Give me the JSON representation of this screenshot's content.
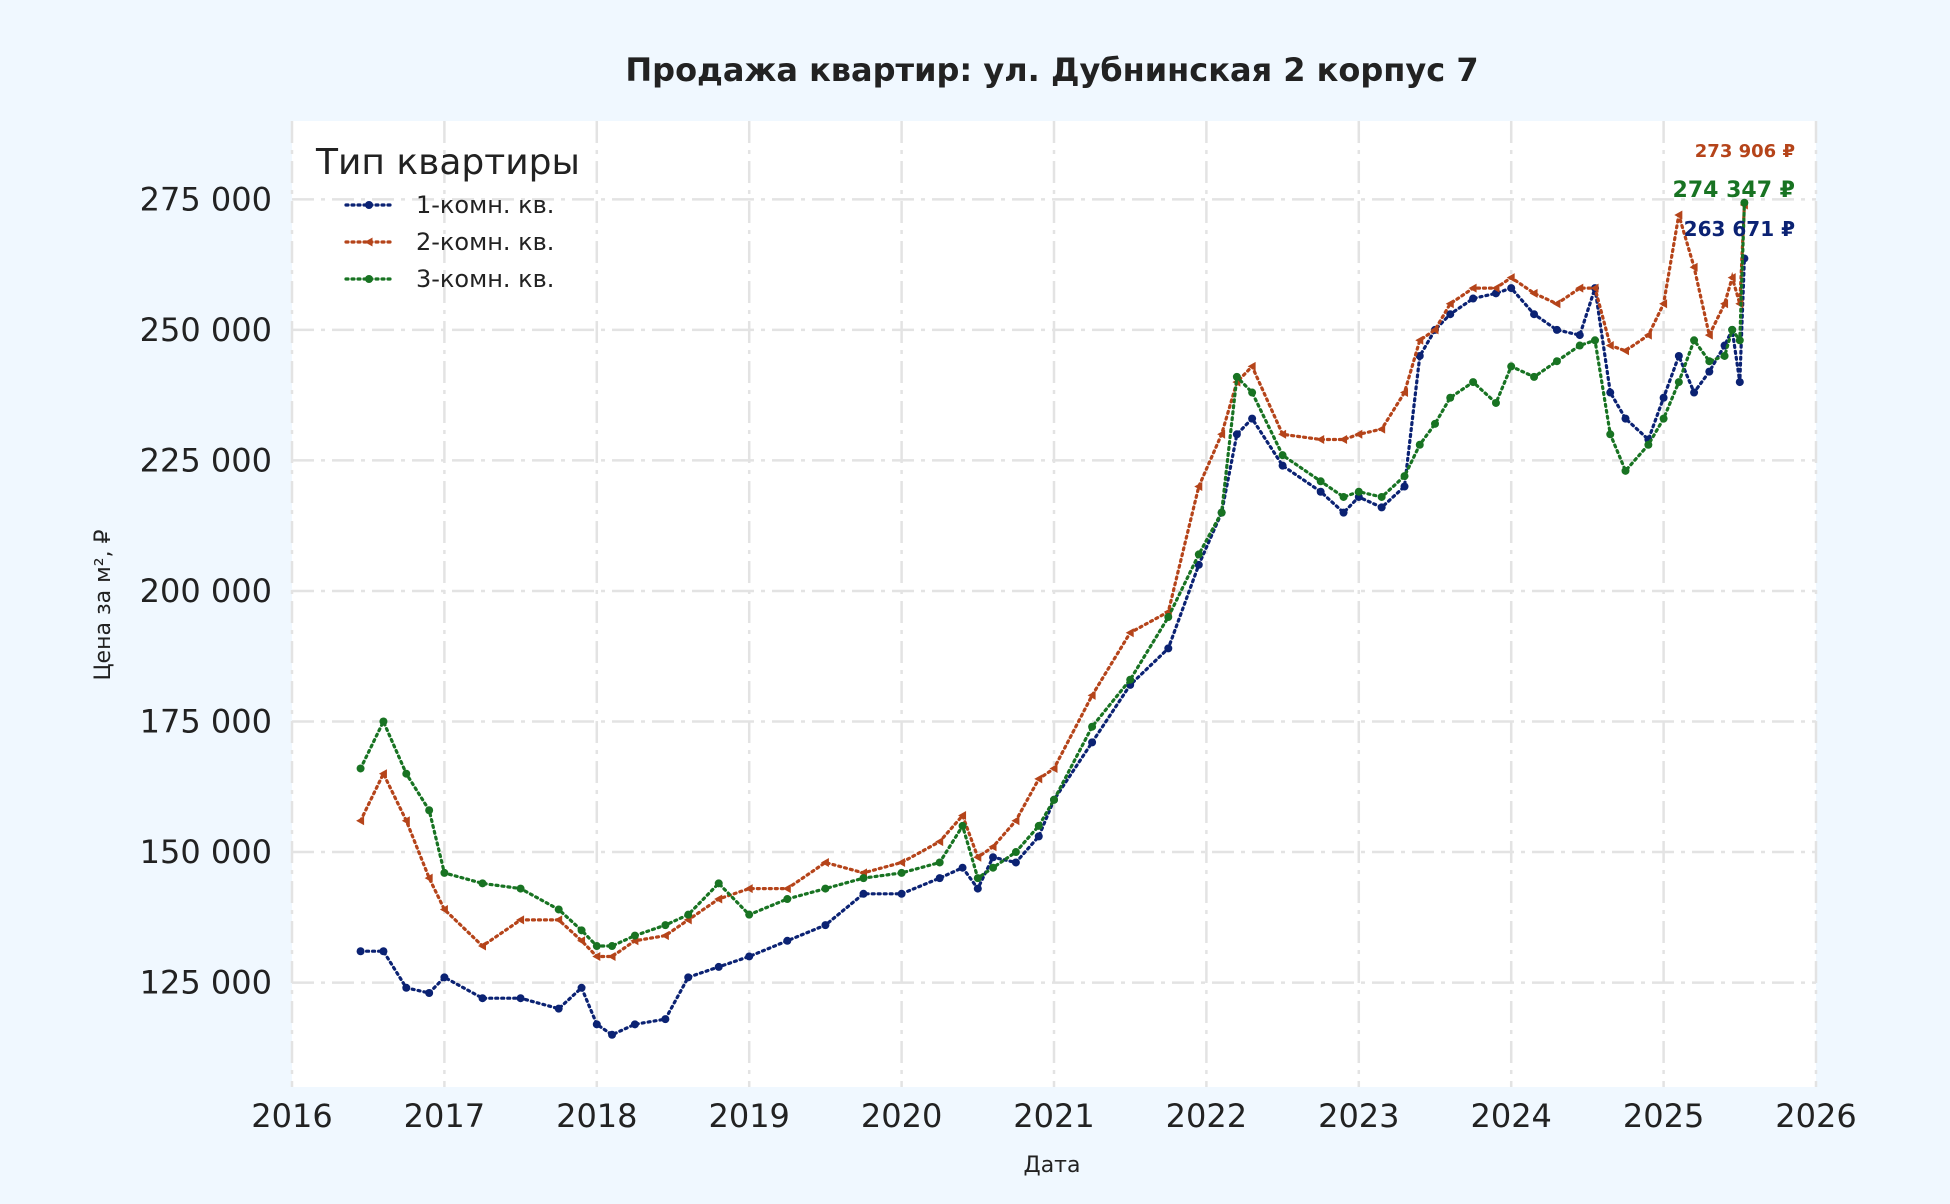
{
  "chart_data": {
    "type": "line",
    "title": "Продажа квартир: ул. Дубнинская 2 корпус 7",
    "xlabel": "Дата",
    "ylabel": "Цена за м², ₽",
    "x_axis": "date",
    "xlim": [
      2016.0,
      2026.0
    ],
    "ylim": [
      105000,
      290000
    ],
    "x_ticks": [
      "2016",
      "2017",
      "2018",
      "2019",
      "2020",
      "2021",
      "2022",
      "2023",
      "2024",
      "2025",
      "2026"
    ],
    "y_ticks": [
      "125 000",
      "150 000",
      "175 000",
      "200 000",
      "225 000",
      "250 000",
      "275 000"
    ],
    "y_tick_values": [
      125000,
      150000,
      175000,
      200000,
      225000,
      250000,
      275000
    ],
    "grid": true,
    "legend": {
      "title": "Тип квартиры",
      "position": "top-left"
    },
    "x": [
      2016.45,
      2016.6,
      2016.75,
      2016.9,
      2017.0,
      2017.25,
      2017.5,
      2017.75,
      2017.9,
      2018.0,
      2018.1,
      2018.25,
      2018.45,
      2018.6,
      2018.8,
      2019.0,
      2019.25,
      2019.5,
      2019.75,
      2020.0,
      2020.25,
      2020.4,
      2020.5,
      2020.6,
      2020.75,
      2020.9,
      2021.0,
      2021.25,
      2021.5,
      2021.75,
      2021.95,
      2022.1,
      2022.2,
      2022.3,
      2022.5,
      2022.75,
      2022.9,
      2023.0,
      2023.15,
      2023.3,
      2023.4,
      2023.5,
      2023.6,
      2023.75,
      2023.9,
      2024.0,
      2024.15,
      2024.3,
      2024.45,
      2024.55,
      2024.65,
      2024.75,
      2024.9,
      2025.0,
      2025.1,
      2025.2,
      2025.3,
      2025.4,
      2025.45,
      2025.5,
      2025.53
    ],
    "series": [
      {
        "name": "1-комн. кв.",
        "color": "#0b2273",
        "marker": "circle",
        "values": [
          131000,
          131000,
          124000,
          123000,
          126000,
          122000,
          122000,
          120000,
          124000,
          117000,
          115000,
          117000,
          118000,
          126000,
          128000,
          130000,
          133000,
          136000,
          142000,
          142000,
          145000,
          147000,
          143000,
          149000,
          148000,
          153000,
          160000,
          171000,
          182000,
          189000,
          205000,
          215000,
          230000,
          233000,
          224000,
          219000,
          215000,
          218000,
          216000,
          220000,
          245000,
          250000,
          253000,
          256000,
          257000,
          258000,
          253000,
          250000,
          249000,
          258000,
          238000,
          233000,
          229000,
          237000,
          245000,
          238000,
          242000,
          247000,
          250000,
          240000,
          263671
        ]
      },
      {
        "name": "2-комн. кв.",
        "color": "#b5441a",
        "marker": "triangle-left",
        "values": [
          156000,
          165000,
          156000,
          145000,
          139000,
          132000,
          137000,
          137000,
          133000,
          130000,
          130000,
          133000,
          134000,
          137000,
          141000,
          143000,
          143000,
          148000,
          146000,
          148000,
          152000,
          157000,
          149000,
          151000,
          156000,
          164000,
          166000,
          180000,
          192000,
          196000,
          220000,
          230000,
          240000,
          243000,
          230000,
          229000,
          229000,
          230000,
          231000,
          238000,
          248000,
          250000,
          255000,
          258000,
          258000,
          260000,
          257000,
          255000,
          258000,
          258000,
          247000,
          246000,
          249000,
          255000,
          272000,
          262000,
          249000,
          255000,
          260000,
          255000,
          273906
        ]
      },
      {
        "name": "3-комн. кв.",
        "color": "#187322",
        "marker": "circle",
        "values": [
          166000,
          175000,
          165000,
          158000,
          146000,
          144000,
          143000,
          139000,
          135000,
          132000,
          132000,
          134000,
          136000,
          138000,
          144000,
          138000,
          141000,
          143000,
          145000,
          146000,
          148000,
          155000,
          145000,
          147000,
          150000,
          155000,
          160000,
          174000,
          183000,
          195000,
          207000,
          215000,
          241000,
          238000,
          226000,
          221000,
          218000,
          219000,
          218000,
          222000,
          228000,
          232000,
          237000,
          240000,
          236000,
          243000,
          241000,
          244000,
          247000,
          248000,
          230000,
          223000,
          228000,
          233000,
          240000,
          248000,
          244000,
          245000,
          250000,
          248000,
          274347
        ]
      }
    ],
    "annotations": [
      {
        "text": "273 906 ₽",
        "color": "#b5441a",
        "series": 1
      },
      {
        "text": "274 347 ₽",
        "color": "#187322",
        "series": 2
      },
      {
        "text": "263 671 ₽",
        "color": "#0b2273",
        "series": 0
      }
    ]
  }
}
